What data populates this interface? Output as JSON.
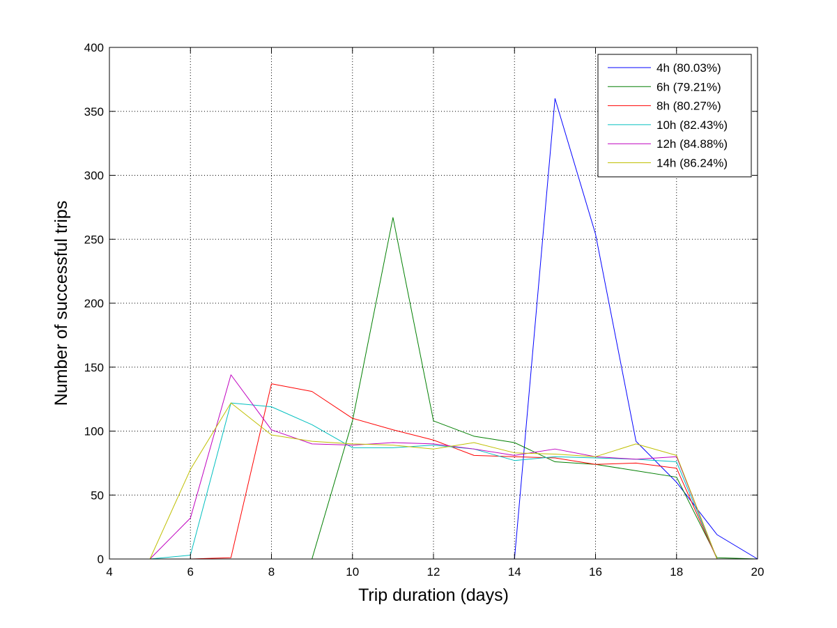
{
  "chart_data": {
    "type": "line",
    "title": "",
    "xlabel": "Trip duration (days)",
    "ylabel": "Number of successful trips",
    "xlim": [
      4,
      20
    ],
    "ylim": [
      0,
      400
    ],
    "xticks": [
      "4",
      "6",
      "8",
      "10",
      "12",
      "14",
      "16",
      "18",
      "20"
    ],
    "yticks": [
      "0",
      "50",
      "100",
      "150",
      "200",
      "250",
      "300",
      "350",
      "400"
    ],
    "grid": true,
    "legend_position": "top-right",
    "x": [
      4,
      5,
      6,
      7,
      8,
      9,
      10,
      11,
      12,
      13,
      14,
      15,
      16,
      17,
      18,
      19,
      20
    ],
    "series": [
      {
        "name": "4h (80.03%)",
        "color": "#0000ff",
        "values": [
          0,
          0,
          0,
          0,
          0,
          0,
          0,
          0,
          0,
          0,
          0,
          360,
          254,
          92,
          60,
          19,
          0
        ]
      },
      {
        "name": "6h (79.21%)",
        "color": "#007f00",
        "values": [
          0,
          0,
          0,
          0,
          0,
          0,
          108,
          267,
          108,
          96,
          91,
          76,
          74,
          69,
          64,
          1,
          0
        ]
      },
      {
        "name": "8h (80.27%)",
        "color": "#ff0000",
        "values": [
          0,
          0,
          0,
          1,
          137,
          131,
          110,
          101,
          93,
          81,
          80,
          79,
          74,
          75,
          71,
          0,
          0
        ]
      },
      {
        "name": "10h (82.43%)",
        "color": "#00bfbf",
        "values": [
          0,
          0,
          3,
          122,
          119,
          105,
          87,
          87,
          89,
          86,
          77,
          80,
          79,
          78,
          76,
          0,
          0
        ]
      },
      {
        "name": "12h (84.88%)",
        "color": "#bf00bf",
        "values": [
          0,
          0,
          32,
          144,
          101,
          90,
          89,
          91,
          90,
          86,
          81,
          86,
          80,
          78,
          80,
          0,
          0
        ]
      },
      {
        "name": "14h (86.24%)",
        "color": "#bfbf00",
        "values": [
          0,
          0,
          70,
          122,
          97,
          92,
          90,
          89,
          86,
          91,
          83,
          82,
          80,
          90,
          81,
          0,
          0
        ]
      }
    ]
  }
}
